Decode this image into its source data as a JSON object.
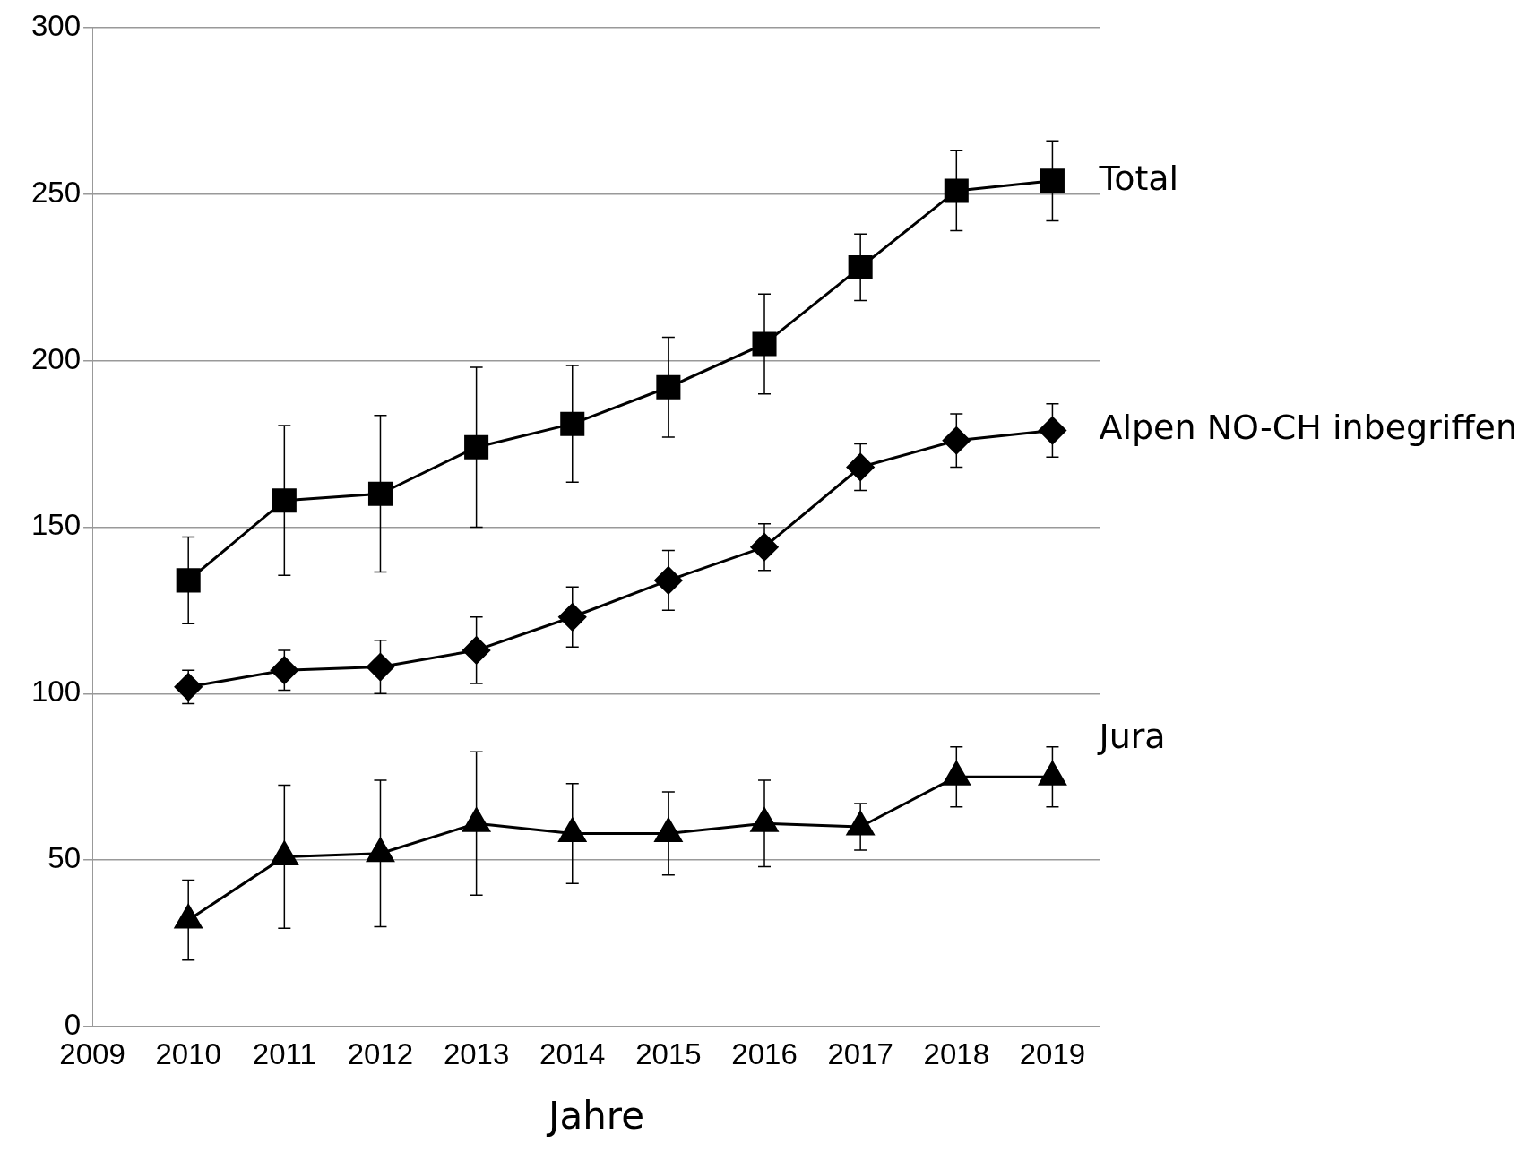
{
  "chart_data": {
    "type": "line",
    "xlabel": "Jahre",
    "x": [
      2010,
      2011,
      2012,
      2013,
      2014,
      2015,
      2016,
      2017,
      2018,
      2019
    ],
    "xlim": [
      2009,
      2019.5
    ],
    "xticks": [
      2009,
      2010,
      2011,
      2012,
      2013,
      2014,
      2015,
      2016,
      2017,
      2018,
      2019
    ],
    "ylim": [
      0,
      300
    ],
    "yticks": [
      0,
      50,
      100,
      150,
      200,
      250,
      300
    ],
    "grid": "y",
    "legend": false,
    "line_style": "solid",
    "series": [
      {
        "name": "Total",
        "color": "#000000",
        "marker": "square",
        "values": [
          134,
          158,
          160,
          174,
          181,
          192,
          205,
          228,
          251,
          254
        ],
        "errors": [
          13,
          22.5,
          23.5,
          24,
          17.5,
          15,
          15,
          10,
          12,
          12
        ]
      },
      {
        "name": "Alpen NO-CH inbegriffen",
        "color": "#000000",
        "marker": "diamond",
        "values": [
          102,
          107,
          108,
          113,
          123,
          134,
          144,
          168,
          176,
          179
        ],
        "errors": [
          5,
          6,
          8,
          10,
          9,
          9,
          7,
          7,
          8,
          8
        ]
      },
      {
        "name": "Jura",
        "color": "#000000",
        "marker": "triangle",
        "values": [
          32,
          51,
          52,
          61,
          58,
          58,
          61,
          60,
          75,
          75
        ],
        "errors": [
          12,
          21.5,
          22,
          21.5,
          15,
          12.5,
          13,
          7,
          9,
          9
        ]
      }
    ]
  }
}
